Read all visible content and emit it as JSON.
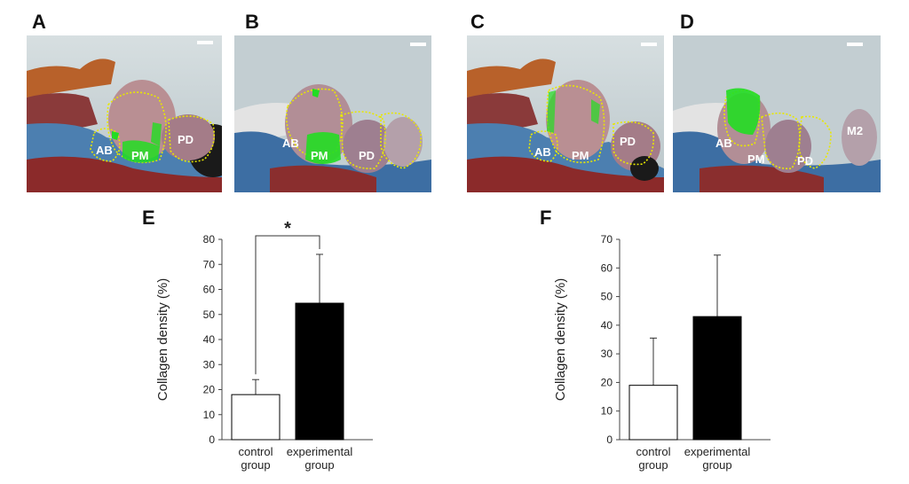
{
  "panels": {
    "A": {
      "letter": "A",
      "labels": [
        "AB",
        "PM",
        "PD"
      ]
    },
    "B": {
      "letter": "B",
      "labels": [
        "AB",
        "PM",
        "PD"
      ]
    },
    "C": {
      "letter": "C",
      "labels": [
        "AB",
        "PM",
        "PD"
      ]
    },
    "D": {
      "letter": "D",
      "labels": [
        "AB",
        "PM",
        "PD",
        "M2"
      ]
    },
    "E": {
      "letter": "E"
    },
    "F": {
      "letter": "F"
    }
  },
  "colors": {
    "control_bar": "#ffffff",
    "experimental_bar": "#000000",
    "highlight_green": "#22dd22",
    "outline_yellow": "#e8e800"
  },
  "chart_data": [
    {
      "panel": "E",
      "type": "bar",
      "categories": [
        "control group",
        "experimental group"
      ],
      "category_lines": [
        [
          "control",
          "group"
        ],
        [
          "experimental",
          "group"
        ]
      ],
      "values": [
        18,
        54.5
      ],
      "errors": [
        6,
        19.5
      ],
      "ylabel": "Collagen density (%)",
      "ylim": [
        0,
        80
      ],
      "yticks": [
        0,
        10,
        20,
        30,
        40,
        50,
        60,
        70,
        80
      ],
      "significance": {
        "symbol": "*",
        "between": [
          0,
          1
        ]
      }
    },
    {
      "panel": "F",
      "type": "bar",
      "categories": [
        "control group",
        "experimental group"
      ],
      "category_lines": [
        [
          "control",
          "group"
        ],
        [
          "experimental",
          "group"
        ]
      ],
      "values": [
        19,
        43
      ],
      "errors": [
        16.5,
        21.5
      ],
      "ylabel": "Collagen density (%)",
      "ylim": [
        0,
        70
      ],
      "yticks": [
        0,
        10,
        20,
        30,
        40,
        50,
        60,
        70
      ]
    }
  ]
}
